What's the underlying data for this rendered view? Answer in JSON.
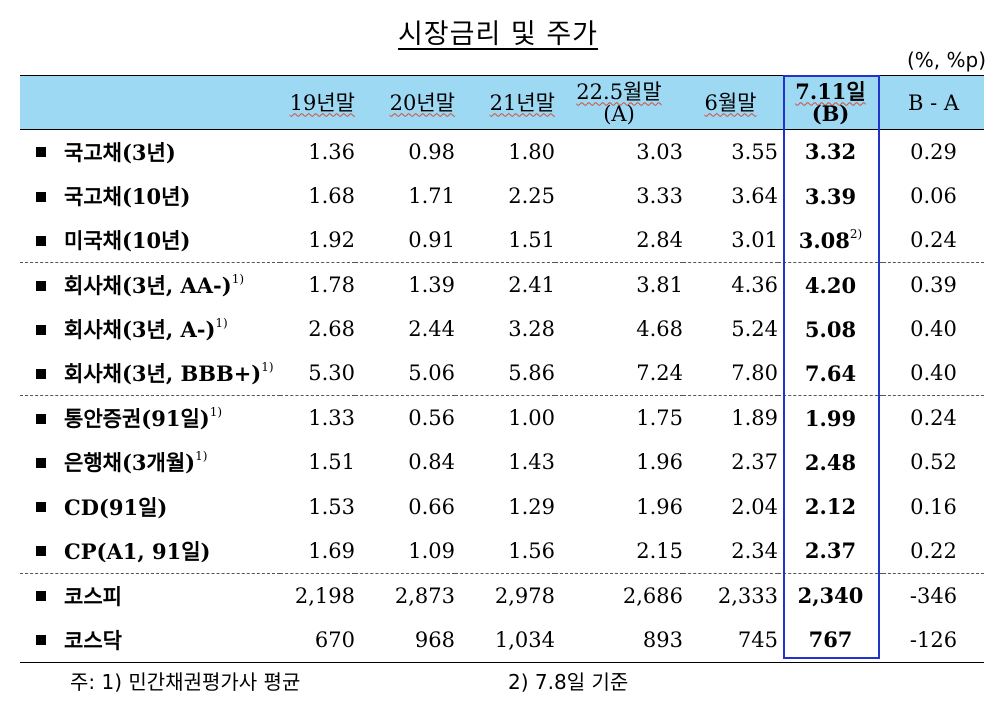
{
  "title": "시장금리 및 주가",
  "unit": "(%, %p)",
  "headers": {
    "c1": "19년말",
    "c2": "20년말",
    "c3": "21년말",
    "c4a": "22.5월말",
    "c4b": "(A)",
    "c5": "6월말",
    "c6a": "7.11일",
    "c6b": "(B)",
    "c7": "B - A"
  },
  "rows": [
    {
      "name": "국고채(3년)",
      "sup": "",
      "v": [
        "1.36",
        "0.98",
        "1.80",
        "3.03",
        "3.55"
      ],
      "b": "3.32",
      "bsup": "",
      "d": "0.29"
    },
    {
      "name": "국고채(10년)",
      "sup": "",
      "v": [
        "1.68",
        "1.71",
        "2.25",
        "3.33",
        "3.64"
      ],
      "b": "3.39",
      "bsup": "",
      "d": "0.06"
    },
    {
      "name": "미국채(10년)",
      "sup": "",
      "v": [
        "1.92",
        "0.91",
        "1.51",
        "2.84",
        "3.01"
      ],
      "b": "3.08",
      "bsup": "2)",
      "d": "0.24"
    },
    {
      "name": "회사채(3년, AA-)",
      "sup": "1)",
      "v": [
        "1.78",
        "1.39",
        "2.41",
        "3.81",
        "4.36"
      ],
      "b": "4.20",
      "bsup": "",
      "d": "0.39"
    },
    {
      "name": "회사채(3년, A-)",
      "sup": "1)",
      "v": [
        "2.68",
        "2.44",
        "3.28",
        "4.68",
        "5.24"
      ],
      "b": "5.08",
      "bsup": "",
      "d": "0.40"
    },
    {
      "name": "회사채(3년, BBB+)",
      "sup": "1)",
      "v": [
        "5.30",
        "5.06",
        "5.86",
        "7.24",
        "7.80"
      ],
      "b": "7.64",
      "bsup": "",
      "d": "0.40"
    },
    {
      "name": "통안증권(91일)",
      "sup": "1)",
      "v": [
        "1.33",
        "0.56",
        "1.00",
        "1.75",
        "1.89"
      ],
      "b": "1.99",
      "bsup": "",
      "d": "0.24"
    },
    {
      "name": "은행채(3개월)",
      "sup": "1)",
      "v": [
        "1.51",
        "0.84",
        "1.43",
        "1.96",
        "2.37"
      ],
      "b": "2.48",
      "bsup": "",
      "d": "0.52"
    },
    {
      "name": "CD(91일)",
      "sup": "",
      "v": [
        "1.53",
        "0.66",
        "1.29",
        "1.96",
        "2.04"
      ],
      "b": "2.12",
      "bsup": "",
      "d": "0.16"
    },
    {
      "name": "CP(A1, 91일)",
      "sup": "",
      "v": [
        "1.69",
        "1.09",
        "1.56",
        "2.15",
        "2.34"
      ],
      "b": "2.37",
      "bsup": "",
      "d": "0.22"
    },
    {
      "name": "코스피",
      "sup": "",
      "v": [
        "2,198",
        "2,873",
        "2,978",
        "2,686",
        "2,333"
      ],
      "b": "2,340",
      "bsup": "",
      "d": "-346"
    },
    {
      "name": "코스닥",
      "sup": "",
      "v": [
        "670",
        "968",
        "1,034",
        "893",
        "745"
      ],
      "b": "767",
      "bsup": "",
      "d": "-126"
    }
  ],
  "notes": {
    "n1": "주: 1) 민간채권평가사 평균",
    "n2": "2) 7.8일 기준"
  }
}
